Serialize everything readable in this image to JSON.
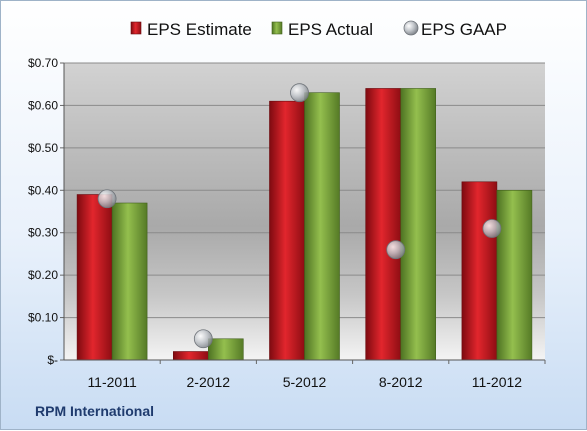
{
  "chart_data": {
    "type": "bar",
    "categories": [
      "11-2011",
      "2-2012",
      "5-2012",
      "8-2012",
      "11-2012"
    ],
    "series": [
      {
        "name": "EPS Estimate",
        "values": [
          0.39,
          0.02,
          0.61,
          0.64,
          0.42
        ],
        "color": "#c0131b",
        "kind": "bar"
      },
      {
        "name": "EPS Actual",
        "values": [
          0.37,
          0.05,
          0.63,
          0.64,
          0.4
        ],
        "color": "#76a33a",
        "kind": "bar"
      },
      {
        "name": "EPS GAAP",
        "values": [
          0.38,
          0.05,
          0.63,
          0.26,
          0.31
        ],
        "color": "#b9bec4",
        "kind": "marker"
      }
    ],
    "y_ticks": [
      {
        "value": 0.0,
        "label": "$-"
      },
      {
        "value": 0.1,
        "label": "$0.10"
      },
      {
        "value": 0.2,
        "label": "$0.20"
      },
      {
        "value": 0.3,
        "label": "$0.30"
      },
      {
        "value": 0.4,
        "label": "$0.40"
      },
      {
        "value": 0.5,
        "label": "$0.50"
      },
      {
        "value": 0.6,
        "label": "$0.60"
      },
      {
        "value": 0.7,
        "label": "$0.70"
      }
    ],
    "ylim": [
      0,
      0.7
    ],
    "grid": true,
    "legend_position": "top"
  },
  "caption": "RPM International"
}
